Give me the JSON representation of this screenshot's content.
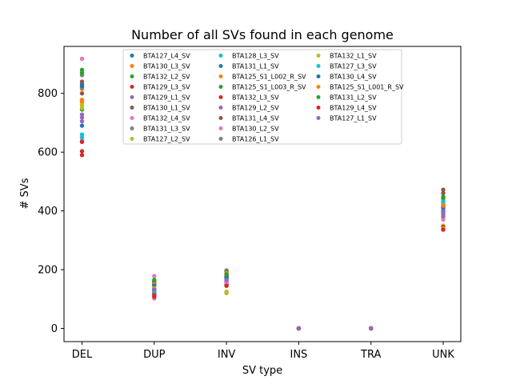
{
  "chart_data": {
    "type": "scatter",
    "title": "Number of all SVs found in each genome",
    "xlabel": "SV type",
    "ylabel": "# SVs",
    "categories": [
      "DEL",
      "DUP",
      "INV",
      "INS",
      "TRA",
      "UNK"
    ],
    "ylim": [
      -45,
      960
    ],
    "yticks": [
      0,
      200,
      400,
      600,
      800
    ],
    "grid": false,
    "legend_position": "top-center",
    "legend_columns": 3,
    "series": [
      {
        "name": "BTA127_L4_SV",
        "color": "#1f77b4",
        "values": [
          690,
          128,
          162,
          0,
          0,
          398
        ]
      },
      {
        "name": "BTA130_L3_SV",
        "color": "#ff7f0e",
        "values": [
          770,
          152,
          185,
          0,
          0,
          425
        ]
      },
      {
        "name": "BTA132_L2_SV",
        "color": "#2ca02c",
        "values": [
          745,
          160,
          178,
          0,
          0,
          442
        ]
      },
      {
        "name": "BTA129_L3_SV",
        "color": "#d62728",
        "values": [
          603,
          112,
          150,
          0,
          0,
          338
        ]
      },
      {
        "name": "BTA129_L1_SV",
        "color": "#9467bd",
        "values": [
          728,
          138,
          168,
          0,
          0,
          392
        ]
      },
      {
        "name": "BTA130_L1_SV",
        "color": "#8c564b",
        "values": [
          800,
          130,
          170,
          0,
          0,
          472
        ]
      },
      {
        "name": "BTA132_L4_SV",
        "color": "#e377c2",
        "values": [
          918,
          178,
          198,
          0,
          0,
          378
        ]
      },
      {
        "name": "BTA131_L3_SV",
        "color": "#7f7f7f",
        "values": [
          862,
          142,
          180,
          0,
          0,
          408
        ]
      },
      {
        "name": "BTA127_L2_SV",
        "color": "#bcbd22",
        "values": [
          750,
          136,
          120,
          0,
          0,
          350
        ]
      },
      {
        "name": "BTA128_L3_SV",
        "color": "#17becf",
        "values": [
          660,
          122,
          190,
          0,
          0,
          430
        ]
      },
      {
        "name": "BTA131_L1_SV",
        "color": "#1f77b4",
        "values": [
          832,
          148,
          176,
          0,
          0,
          416
        ]
      },
      {
        "name": "BTA125_S1_L002_R_SV",
        "color": "#ff7f0e",
        "values": [
          815,
          156,
          192,
          0,
          0,
          420
        ]
      },
      {
        "name": "BTA125_S1_L003_R_SV",
        "color": "#2ca02c",
        "values": [
          880,
          165,
          195,
          0,
          0,
          448
        ]
      },
      {
        "name": "BTA132_L3_SV",
        "color": "#d62728",
        "values": [
          590,
          118,
          148,
          0,
          0,
          345
        ]
      },
      {
        "name": "BTA129_L2_SV",
        "color": "#9467bd",
        "values": [
          705,
          134,
          158,
          0,
          0,
          402
        ]
      },
      {
        "name": "BTA131_L4_SV",
        "color": "#8c564b",
        "values": [
          840,
          144,
          174,
          0,
          0,
          460
        ]
      },
      {
        "name": "BTA130_L2_SV",
        "color": "#e377c2",
        "values": [
          640,
          102,
          155,
          0,
          0,
          370
        ]
      },
      {
        "name": "BTA126_L1_SV",
        "color": "#7f7f7f",
        "values": [
          820,
          146,
          182,
          0,
          0,
          382
        ]
      },
      {
        "name": "BTA132_L1_SV",
        "color": "#bcbd22",
        "values": [
          760,
          140,
          125,
          0,
          0,
          340
        ]
      },
      {
        "name": "BTA127_L3_SV",
        "color": "#17becf",
        "values": [
          650,
          126,
          186,
          0,
          0,
          436
        ]
      },
      {
        "name": "BTA130_L4_SV",
        "color": "#1f77b4",
        "values": [
          825,
          150,
          172,
          0,
          0,
          412
        ]
      },
      {
        "name": "BTA125_S1_L001_R_SV",
        "color": "#ff7f0e",
        "values": [
          778,
          158,
          188,
          0,
          0,
          418
        ]
      },
      {
        "name": "BTA131_L2_SV",
        "color": "#2ca02c",
        "values": [
          870,
          162,
          184,
          0,
          0,
          445
        ]
      },
      {
        "name": "BTA129_L4_SV",
        "color": "#d62728",
        "values": [
          635,
          108,
          145,
          0,
          0,
          336
        ]
      },
      {
        "name": "BTA127_L1_SV",
        "color": "#9467bd",
        "values": [
          718,
          132,
          165,
          0,
          0,
          388
        ]
      }
    ]
  }
}
